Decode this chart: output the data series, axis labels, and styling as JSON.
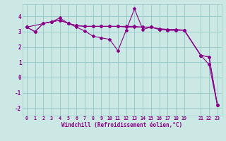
{
  "bg_color": "#cce8e4",
  "line_color": "#880088",
  "grid_color": "#99cccc",
  "xlabel": "Windchill (Refroidissement éolien,°C)",
  "xlabel_color": "#880088",
  "tick_color": "#880088",
  "ylim": [
    -2.5,
    4.8
  ],
  "xlim": [
    -0.5,
    23.5
  ],
  "xtick_vals": [
    0,
    1,
    2,
    3,
    4,
    5,
    6,
    7,
    8,
    9,
    10,
    11,
    12,
    13,
    14,
    15,
    16,
    17,
    18,
    19,
    21,
    22,
    23
  ],
  "xtick_labels": [
    "0",
    "1",
    "2",
    "3",
    "4",
    "5",
    "6",
    "7",
    "8",
    "9",
    "10",
    "11",
    "12",
    "13",
    "14",
    "15",
    "16",
    "17",
    "18",
    "19",
    "21",
    "22",
    "23"
  ],
  "ytick_vals": [
    -2,
    -1,
    0,
    1,
    2,
    3,
    4
  ],
  "ytick_labels": [
    "-2",
    "-1",
    "0",
    "1",
    "2",
    "3",
    "4"
  ],
  "series1_x": [
    0,
    1,
    2,
    3,
    4,
    5,
    6,
    7,
    8,
    9,
    10,
    11,
    12,
    13,
    14,
    15,
    16,
    17,
    18,
    19,
    21,
    22,
    23
  ],
  "series1_y": [
    3.3,
    3.0,
    3.55,
    3.65,
    3.75,
    3.55,
    3.3,
    3.05,
    2.7,
    2.6,
    2.5,
    1.75,
    3.1,
    4.5,
    3.15,
    3.3,
    3.2,
    3.15,
    3.15,
    3.1,
    1.45,
    0.85,
    -1.8
  ],
  "series2_x": [
    0,
    1,
    2,
    3,
    4,
    5,
    6,
    7,
    8,
    9,
    10,
    11,
    12,
    13,
    14,
    15,
    16,
    17,
    18,
    19,
    21,
    22,
    23
  ],
  "series2_y": [
    3.3,
    3.0,
    3.55,
    3.65,
    3.75,
    3.55,
    3.4,
    3.35,
    3.35,
    3.35,
    3.35,
    3.35,
    3.3,
    3.3,
    3.3,
    3.3,
    3.15,
    3.1,
    3.1,
    3.1,
    1.45,
    1.35,
    -1.8
  ],
  "series3_x": [
    0,
    3,
    4,
    5,
    6,
    7,
    8,
    9,
    10,
    11,
    12,
    13,
    14,
    15,
    16,
    17,
    18,
    19,
    21,
    22,
    23
  ],
  "series3_y": [
    3.3,
    3.65,
    3.9,
    3.55,
    3.4,
    3.35,
    3.35,
    3.35,
    3.35,
    3.35,
    3.35,
    3.35,
    3.3,
    3.3,
    3.15,
    3.1,
    3.1,
    3.1,
    1.45,
    1.35,
    -1.8
  ]
}
